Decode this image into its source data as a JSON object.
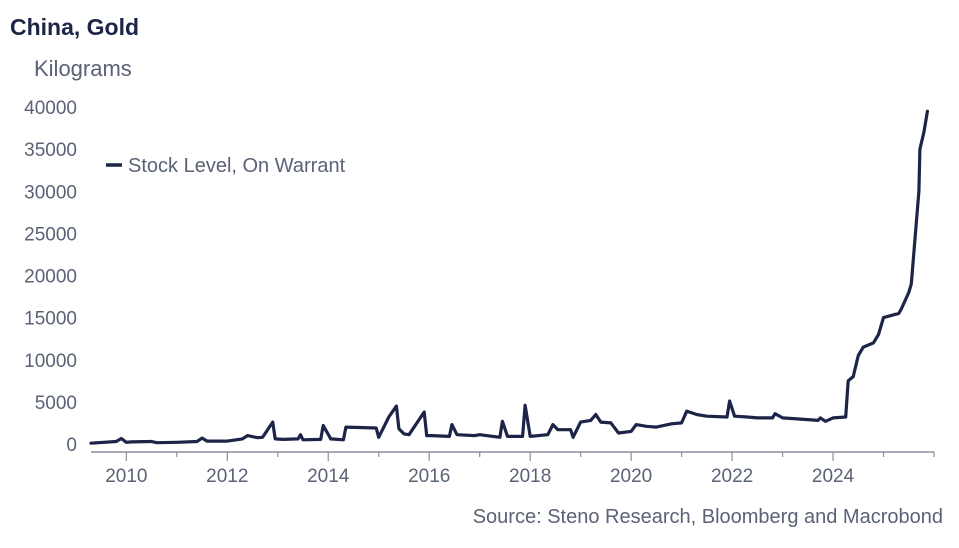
{
  "chart_data": {
    "type": "line",
    "title": "China, Gold",
    "ylabel": "Kilograms",
    "xlabel": "",
    "source": "Source: Steno Research, Bloomberg and Macrobond",
    "ylim": [
      0,
      40000
    ],
    "xlim": [
      2009.3,
      2026.0
    ],
    "y_ticks": [
      "0",
      "5000",
      "10000",
      "15000",
      "20000",
      "25000",
      "30000",
      "35000",
      "40000"
    ],
    "x_ticks": [
      "2010",
      "2012",
      "2014",
      "2016",
      "2018",
      "2020",
      "2022",
      "2024"
    ],
    "legend_position": "top-left",
    "series": [
      {
        "name": "Stock Level, On Warrant",
        "color": "#1c2447",
        "x": [
          2009.3,
          2009.8,
          2009.9,
          2010.0,
          2010.1,
          2010.5,
          2010.6,
          2011.0,
          2011.4,
          2011.5,
          2011.6,
          2012.0,
          2012.3,
          2012.4,
          2012.6,
          2012.7,
          2012.9,
          2012.95,
          2013.1,
          2013.4,
          2013.45,
          2013.5,
          2013.85,
          2013.9,
          2014.05,
          2014.3,
          2014.35,
          2014.95,
          2015.0,
          2015.2,
          2015.35,
          2015.4,
          2015.5,
          2015.6,
          2015.9,
          2015.95,
          2016.05,
          2016.4,
          2016.45,
          2016.55,
          2016.9,
          2017.0,
          2017.4,
          2017.45,
          2017.55,
          2017.85,
          2017.9,
          2018.0,
          2018.35,
          2018.45,
          2018.55,
          2018.8,
          2018.85,
          2019.0,
          2019.2,
          2019.3,
          2019.4,
          2019.6,
          2019.7,
          2019.75,
          2020.0,
          2020.1,
          2020.3,
          2020.5,
          2020.8,
          2021.0,
          2021.1,
          2021.3,
          2021.5,
          2021.9,
          2021.95,
          2022.05,
          2022.3,
          2022.5,
          2022.8,
          2022.85,
          2023.0,
          2023.5,
          2023.7,
          2023.75,
          2023.85,
          2024.0,
          2024.25,
          2024.3,
          2024.4,
          2024.5,
          2024.6,
          2024.8,
          2024.9,
          2025.0,
          2025.3,
          2025.35,
          2025.5,
          2025.55,
          2025.7,
          2025.72,
          2025.8,
          2025.87
        ],
        "values": [
          100,
          300,
          650,
          200,
          250,
          300,
          150,
          200,
          300,
          700,
          350,
          350,
          600,
          1000,
          750,
          800,
          2600,
          600,
          550,
          600,
          1100,
          500,
          550,
          2200,
          600,
          500,
          2000,
          1900,
          800,
          3200,
          4500,
          1800,
          1200,
          1100,
          3800,
          1000,
          1000,
          900,
          2300,
          1100,
          1000,
          1100,
          800,
          2700,
          900,
          900,
          4600,
          900,
          1100,
          2300,
          1700,
          1700,
          800,
          2600,
          2800,
          3500,
          2600,
          2500,
          1700,
          1300,
          1500,
          2300,
          2100,
          2000,
          2400,
          2500,
          3900,
          3500,
          3300,
          3200,
          5100,
          3300,
          3200,
          3100,
          3100,
          3600,
          3100,
          2900,
          2800,
          3100,
          2700,
          3100,
          3200,
          7500,
          8000,
          10500,
          11500,
          12000,
          13000,
          15000,
          15500,
          16000,
          18000,
          19000,
          30000,
          35000,
          37000,
          39500
        ]
      }
    ]
  }
}
